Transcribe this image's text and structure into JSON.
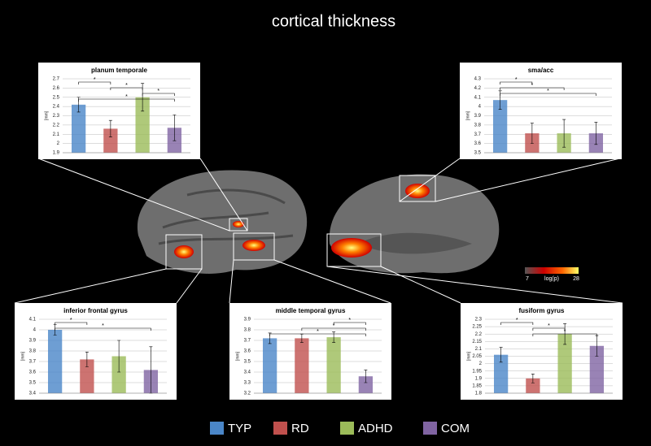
{
  "title": "cortical thickness",
  "colorbar": {
    "min": "7",
    "label": "log(p)",
    "max": "28"
  },
  "chart_data": [
    {
      "type": "bar",
      "title": "planum temporale",
      "ylabel": "[mm]",
      "ylim": [
        1.9,
        2.7
      ],
      "yticks": [
        1.9,
        2,
        2.1,
        2.2,
        2.3,
        2.4,
        2.5,
        2.6,
        2.7
      ],
      "series": [
        {
          "name": "TYP",
          "color": "#4a86c8",
          "values": [
            2.42
          ],
          "errors": [
            0.08
          ]
        },
        {
          "name": "RD",
          "color": "#c0504d",
          "values": [
            2.16
          ],
          "errors": [
            0.09
          ]
        },
        {
          "name": "ADHD",
          "color": "#9bbb59",
          "values": [
            2.5
          ],
          "errors": [
            0.15
          ]
        },
        {
          "name": "COM",
          "color": "#8064a2",
          "values": [
            2.17
          ],
          "errors": [
            0.14
          ]
        }
      ],
      "significance": [
        {
          "from": "TYP",
          "to": "RD",
          "label": "*"
        },
        {
          "from": "RD",
          "to": "ADHD",
          "label": "*"
        },
        {
          "from": "ADHD",
          "to": "COM",
          "label": "*"
        },
        {
          "from": "TYP",
          "to": "COM",
          "label": "*"
        }
      ]
    },
    {
      "type": "bar",
      "title": "sma/acc",
      "ylabel": "[mm]",
      "ylim": [
        3.5,
        4.3
      ],
      "yticks": [
        3.5,
        3.6,
        3.7,
        3.8,
        3.9,
        4,
        4.1,
        4.2,
        4.3
      ],
      "series": [
        {
          "name": "TYP",
          "color": "#4a86c8",
          "values": [
            4.07
          ],
          "errors": [
            0.1
          ]
        },
        {
          "name": "RD",
          "color": "#c0504d",
          "values": [
            3.71
          ],
          "errors": [
            0.11
          ]
        },
        {
          "name": "ADHD",
          "color": "#9bbb59",
          "values": [
            3.71
          ],
          "errors": [
            0.15
          ]
        },
        {
          "name": "COM",
          "color": "#8064a2",
          "values": [
            3.71
          ],
          "errors": [
            0.12
          ]
        }
      ],
      "significance": [
        {
          "from": "TYP",
          "to": "RD",
          "label": "*"
        },
        {
          "from": "TYP",
          "to": "ADHD",
          "label": "*"
        },
        {
          "from": "TYP",
          "to": "COM",
          "label": "*"
        }
      ]
    },
    {
      "type": "bar",
      "title": "inferior frontal gyrus",
      "ylabel": "[mm]",
      "ylim": [
        3.4,
        4.1
      ],
      "yticks": [
        3.4,
        3.5,
        3.6,
        3.7,
        3.8,
        3.9,
        4,
        4.1
      ],
      "series": [
        {
          "name": "TYP",
          "color": "#4a86c8",
          "values": [
            4.0
          ],
          "errors": [
            0.05
          ]
        },
        {
          "name": "RD",
          "color": "#c0504d",
          "values": [
            3.72
          ],
          "errors": [
            0.07
          ]
        },
        {
          "name": "ADHD",
          "color": "#9bbb59",
          "values": [
            3.75
          ],
          "errors": [
            0.15
          ]
        },
        {
          "name": "COM",
          "color": "#8064a2",
          "values": [
            3.62
          ],
          "errors": [
            0.22
          ]
        }
      ],
      "significance": [
        {
          "from": "TYP",
          "to": "RD",
          "label": "*"
        },
        {
          "from": "TYP",
          "to": "COM",
          "label": "*"
        }
      ]
    },
    {
      "type": "bar",
      "title": "middle temporal gyrus",
      "ylabel": "[mm]",
      "ylim": [
        3.2,
        3.9
      ],
      "yticks": [
        3.2,
        3.3,
        3.4,
        3.5,
        3.6,
        3.7,
        3.8,
        3.9
      ],
      "series": [
        {
          "name": "TYP",
          "color": "#4a86c8",
          "values": [
            3.72
          ],
          "errors": [
            0.05
          ]
        },
        {
          "name": "RD",
          "color": "#c0504d",
          "values": [
            3.72
          ],
          "errors": [
            0.04
          ]
        },
        {
          "name": "ADHD",
          "color": "#9bbb59",
          "values": [
            3.73
          ],
          "errors": [
            0.05
          ]
        },
        {
          "name": "COM",
          "color": "#8064a2",
          "values": [
            3.36
          ],
          "errors": [
            0.06
          ]
        }
      ],
      "significance": [
        {
          "from": "ADHD",
          "to": "COM",
          "label": "*"
        },
        {
          "from": "RD",
          "to": "COM",
          "label": "*"
        },
        {
          "from": "TYP",
          "to": "COM",
          "label": "*"
        }
      ]
    },
    {
      "type": "bar",
      "title": "fusiform gyrus",
      "ylabel": "[mm]",
      "ylim": [
        1.8,
        2.3
      ],
      "yticks": [
        1.8,
        1.85,
        1.9,
        1.95,
        2,
        2.05,
        2.1,
        2.15,
        2.2,
        2.25,
        2.3
      ],
      "series": [
        {
          "name": "TYP",
          "color": "#4a86c8",
          "values": [
            2.06
          ],
          "errors": [
            0.05
          ]
        },
        {
          "name": "RD",
          "color": "#c0504d",
          "values": [
            1.9
          ],
          "errors": [
            0.03
          ]
        },
        {
          "name": "ADHD",
          "color": "#9bbb59",
          "values": [
            2.2
          ],
          "errors": [
            0.07
          ]
        },
        {
          "name": "COM",
          "color": "#8064a2",
          "values": [
            2.12
          ],
          "errors": [
            0.07
          ]
        }
      ],
      "significance": [
        {
          "from": "TYP",
          "to": "RD",
          "label": "*"
        },
        {
          "from": "RD",
          "to": "ADHD",
          "label": "*"
        },
        {
          "from": "RD",
          "to": "COM",
          "label": "*"
        }
      ]
    }
  ]
}
